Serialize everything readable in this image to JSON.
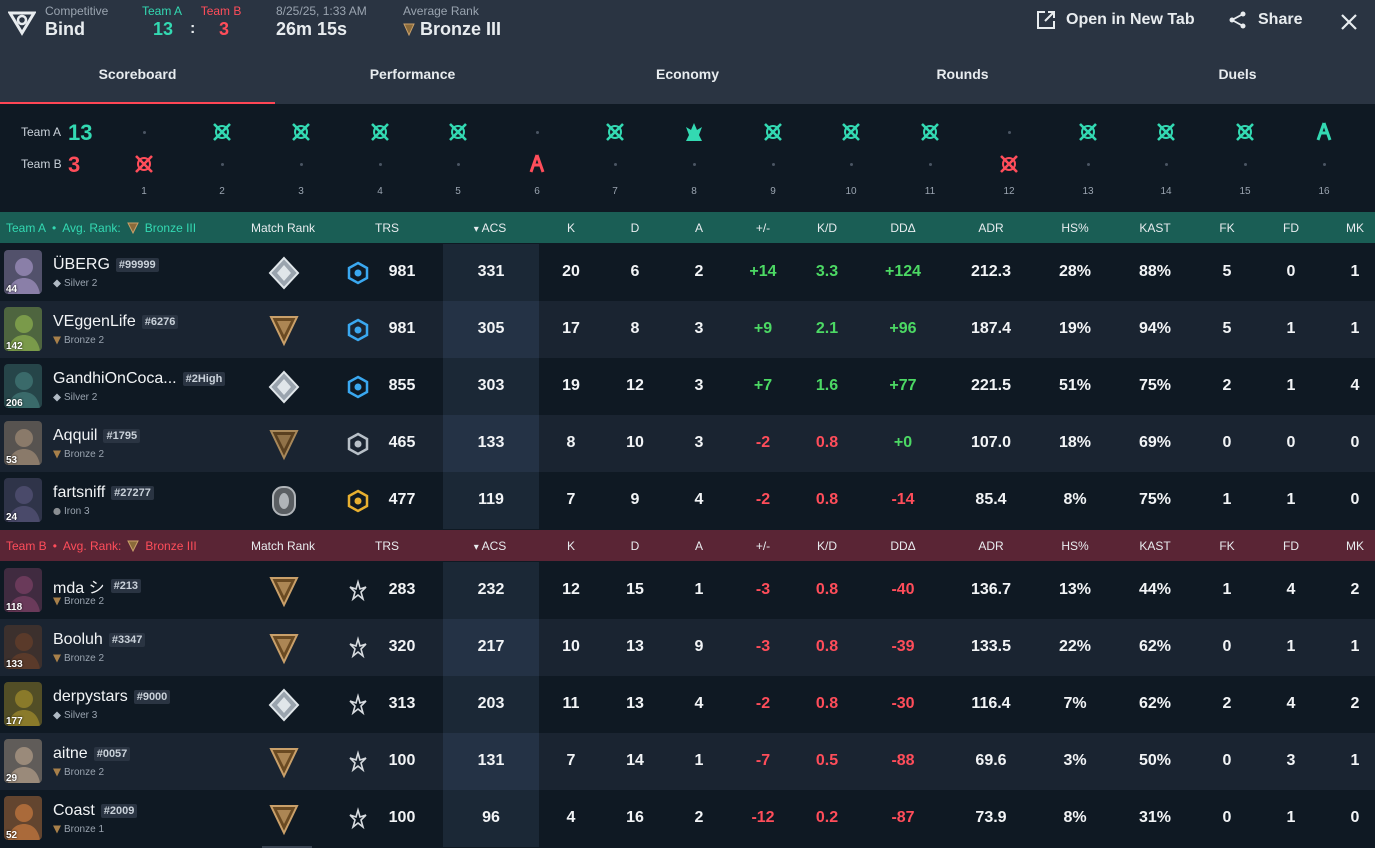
{
  "header": {
    "mode": "Competitive",
    "map": "Bind",
    "team_a_label": "Team A",
    "team_b_label": "Team B",
    "team_a_score": "13",
    "team_b_score": "3",
    "score_sep": ":",
    "date": "8/25/25, 1:33 AM",
    "duration": "26m 15s",
    "avg_rank_label": "Average Rank",
    "avg_rank": "Bronze III",
    "open_tab_label": "Open in New Tab",
    "share_label": "Share"
  },
  "tabs": [
    "Scoreboard",
    "Performance",
    "Economy",
    "Rounds",
    "Duels"
  ],
  "timeline": {
    "team_a_label": "Team A",
    "team_a_score": "13",
    "team_b_label": "Team B",
    "team_b_score": "3",
    "rounds": [
      {
        "n": "1",
        "winner": "B",
        "type": "elim"
      },
      {
        "n": "2",
        "winner": "A",
        "type": "elim"
      },
      {
        "n": "3",
        "winner": "A",
        "type": "elim"
      },
      {
        "n": "4",
        "winner": "A",
        "type": "elim"
      },
      {
        "n": "5",
        "winner": "A",
        "type": "elim"
      },
      {
        "n": "6",
        "winner": "B",
        "type": "defuse"
      },
      {
        "n": "7",
        "winner": "A",
        "type": "elim"
      },
      {
        "n": "8",
        "winner": "A",
        "type": "spike"
      },
      {
        "n": "9",
        "winner": "A",
        "type": "elim"
      },
      {
        "n": "10",
        "winner": "A",
        "type": "elim"
      },
      {
        "n": "11",
        "winner": "A",
        "type": "elim"
      },
      {
        "n": "12",
        "winner": "B",
        "type": "elim"
      },
      {
        "n": "13",
        "winner": "A",
        "type": "elim"
      },
      {
        "n": "14",
        "winner": "A",
        "type": "elim"
      },
      {
        "n": "15",
        "winner": "A",
        "type": "elim"
      },
      {
        "n": "16",
        "winner": "A",
        "type": "defuse"
      }
    ]
  },
  "columns": [
    "Match Rank",
    "TRS",
    "ACS",
    "K",
    "D",
    "A",
    "+/-",
    "K/D",
    "DDΔ",
    "ADR",
    "HS%",
    "KAST",
    "FK",
    "FD",
    "MK"
  ],
  "team_a": {
    "label": "Team A",
    "bullet": "•",
    "avg_rank_label": "Avg. Rank:",
    "avg_rank": "Bronze III",
    "players": [
      {
        "name": "ÜBERG",
        "tag": "#99999",
        "level": "44",
        "rank": "Silver 2",
        "tier": "silver",
        "trs_tier": "blue",
        "trs": "981",
        "acs": "331",
        "k": "20",
        "d": "6",
        "a": "2",
        "pm": "+14",
        "kd": "3.3",
        "dd": "+124",
        "adr": "212.3",
        "hs": "28%",
        "kast": "88%",
        "fk": "5",
        "fd": "0",
        "mk": "1",
        "color": "#8a7fa8"
      },
      {
        "name": "VEggenLife",
        "tag": "#6276",
        "level": "142",
        "rank": "Bronze 2",
        "tier": "bronze",
        "trs_tier": "blue",
        "trs": "981",
        "acs": "305",
        "k": "17",
        "d": "8",
        "a": "3",
        "pm": "+9",
        "kd": "2.1",
        "dd": "+96",
        "adr": "187.4",
        "hs": "19%",
        "kast": "94%",
        "fk": "5",
        "fd": "1",
        "mk": "1",
        "color": "#7a9a4a"
      },
      {
        "name": "GandhiOnCoca...",
        "tag": "#2High",
        "level": "206",
        "rank": "Silver 2",
        "tier": "silver",
        "trs_tier": "blue",
        "trs": "855",
        "acs": "303",
        "k": "19",
        "d": "12",
        "a": "3",
        "pm": "+7",
        "kd": "1.6",
        "dd": "+77",
        "adr": "221.5",
        "hs": "51%",
        "kast": "75%",
        "fk": "2",
        "fd": "1",
        "mk": "4",
        "color": "#3a6a6a"
      },
      {
        "name": "Aqquil",
        "tag": "#1795",
        "level": "53",
        "rank": "Bronze 2",
        "tier": "bronze-dark",
        "trs_tier": "gray",
        "trs": "465",
        "acs": "133",
        "k": "8",
        "d": "10",
        "a": "3",
        "pm": "-2",
        "kd": "0.8",
        "dd": "+0",
        "adr": "107.0",
        "hs": "18%",
        "kast": "69%",
        "fk": "0",
        "fd": "0",
        "mk": "0",
        "color": "#8a7a6a"
      },
      {
        "name": "fartsniff",
        "tag": "#27277",
        "level": "24",
        "rank": "Iron 3",
        "tier": "iron",
        "trs_tier": "gold",
        "trs": "477",
        "acs": "119",
        "k": "7",
        "d": "9",
        "a": "4",
        "pm": "-2",
        "kd": "0.8",
        "dd": "-14",
        "adr": "85.4",
        "hs": "8%",
        "kast": "75%",
        "fk": "1",
        "fd": "1",
        "mk": "0",
        "color": "#4a4a6a"
      }
    ]
  },
  "team_b": {
    "label": "Team B",
    "bullet": "•",
    "avg_rank_label": "Avg. Rank:",
    "avg_rank": "Bronze III",
    "players": [
      {
        "name": "mda シ",
        "tag": "#213",
        "level": "118",
        "rank": "Bronze 2",
        "tier": "bronze",
        "trs_tier": "red",
        "trs": "283",
        "acs": "232",
        "k": "12",
        "d": "15",
        "a": "1",
        "pm": "-3",
        "kd": "0.8",
        "dd": "-40",
        "adr": "136.7",
        "hs": "13%",
        "kast": "44%",
        "fk": "1",
        "fd": "4",
        "mk": "2",
        "color": "#6a3a5a"
      },
      {
        "name": "Booluh",
        "tag": "#3347",
        "level": "133",
        "rank": "Bronze 2",
        "tier": "bronze",
        "trs_tier": "red",
        "trs": "320",
        "acs": "217",
        "k": "10",
        "d": "13",
        "a": "9",
        "pm": "-3",
        "kd": "0.8",
        "dd": "-39",
        "adr": "133.5",
        "hs": "22%",
        "kast": "62%",
        "fk": "0",
        "fd": "1",
        "mk": "1",
        "color": "#5a3a2a"
      },
      {
        "name": "derpystars",
        "tag": "#9000",
        "level": "177",
        "rank": "Silver 3",
        "tier": "silver",
        "trs_tier": "red",
        "trs": "313",
        "acs": "203",
        "k": "11",
        "d": "13",
        "a": "4",
        "pm": "-2",
        "kd": "0.8",
        "dd": "-30",
        "adr": "116.4",
        "hs": "7%",
        "kast": "62%",
        "fk": "2",
        "fd": "4",
        "mk": "2",
        "color": "#8a7a2a"
      },
      {
        "name": "aitne",
        "tag": "#0057",
        "level": "29",
        "rank": "Bronze 2",
        "tier": "bronze",
        "trs_tier": "red",
        "trs": "100",
        "acs": "131",
        "k": "7",
        "d": "14",
        "a": "1",
        "pm": "-7",
        "kd": "0.5",
        "dd": "-88",
        "adr": "69.6",
        "hs": "3%",
        "kast": "50%",
        "fk": "0",
        "fd": "3",
        "mk": "1",
        "color": "#9a8a7a"
      },
      {
        "name": "Coast",
        "tag": "#2009",
        "level": "52",
        "rank": "Bronze 1",
        "tier": "bronze",
        "trs_tier": "red",
        "trs": "100",
        "acs": "96",
        "k": "4",
        "d": "16",
        "a": "2",
        "pm": "-12",
        "kd": "0.2",
        "dd": "-87",
        "adr": "73.9",
        "hs": "8%",
        "kast": "31%",
        "fk": "0",
        "fd": "1",
        "mk": "0",
        "color": "#aa6a3a"
      }
    ]
  },
  "colors": {
    "team_a": "#33d9b2",
    "team_b": "#ff4d5a",
    "positive": "#4cd964",
    "negative": "#ff4d5a",
    "accent": "#ff4655"
  }
}
